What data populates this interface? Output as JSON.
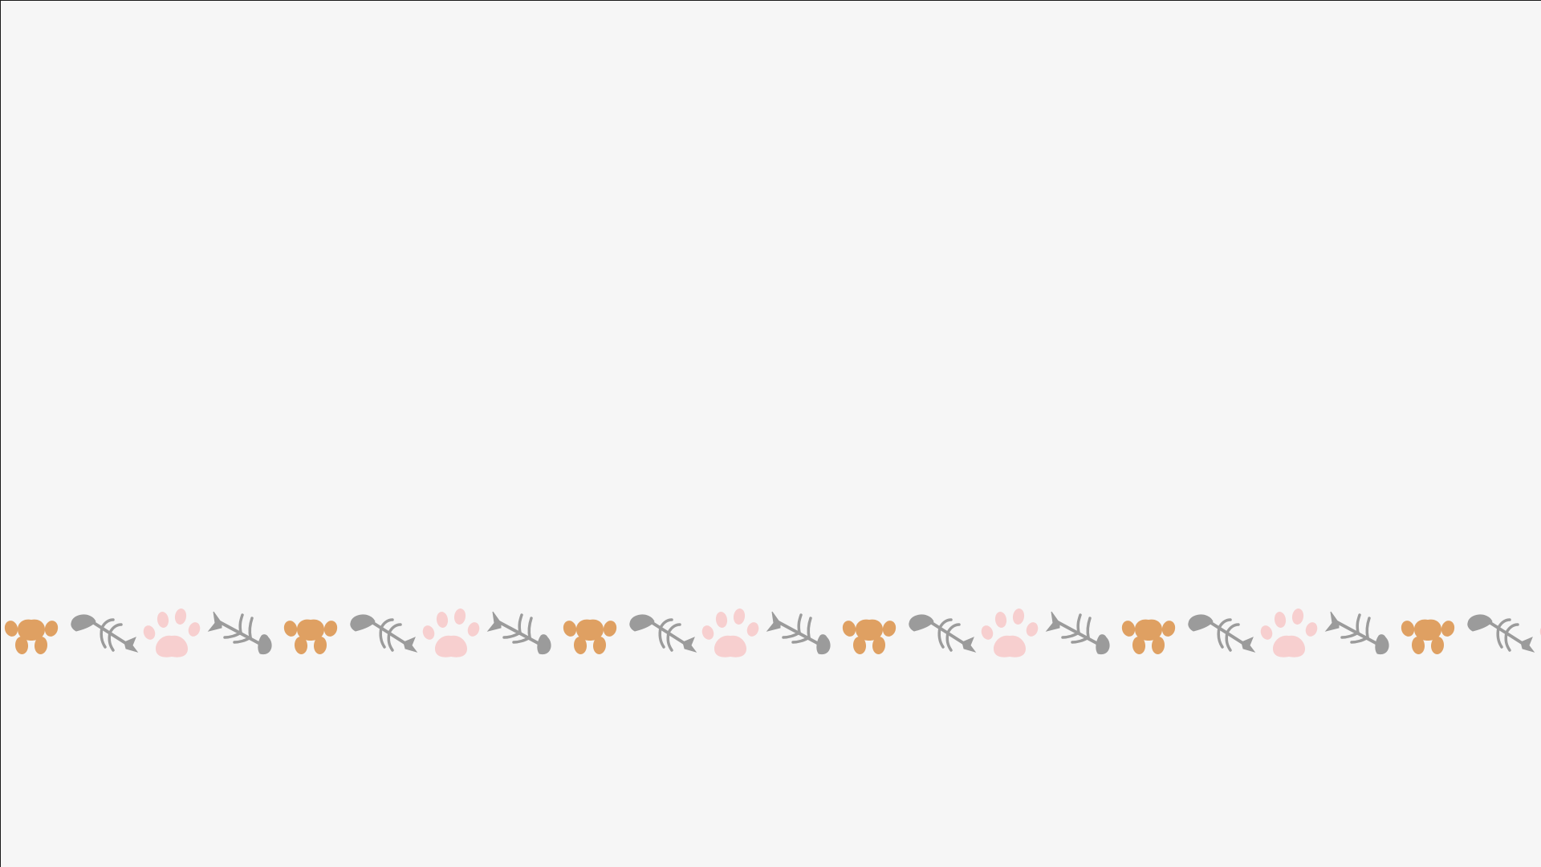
{
  "slide": {
    "background": "#f6f6f6"
  },
  "border": {
    "pattern": [
      "paw-print-icon",
      "fish-bone-icon",
      "paw-print-icon",
      "fish-bone-icon"
    ],
    "colors": {
      "orange_paw": "#dfa062",
      "pink_paw": "#f7cfcf",
      "fish_bone": "#9b9b9b"
    }
  }
}
